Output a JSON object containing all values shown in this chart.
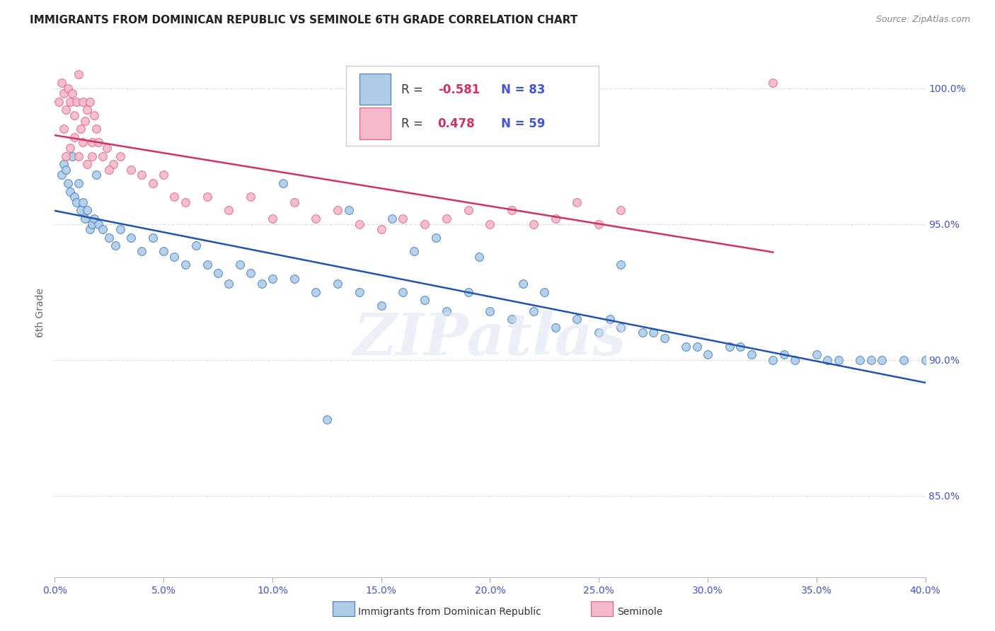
{
  "title": "IMMIGRANTS FROM DOMINICAN REPUBLIC VS SEMINOLE 6TH GRADE CORRELATION CHART",
  "source": "Source: ZipAtlas.com",
  "ylabel": "6th Grade",
  "xmin": 0.0,
  "xmax": 40.0,
  "ymin": 82.0,
  "ymax": 101.5,
  "yticks": [
    85.0,
    90.0,
    95.0,
    100.0
  ],
  "ytick_labels": [
    "85.0%",
    "90.0%",
    "95.0%",
    "100.0%"
  ],
  "legend_label1": "Immigrants from Dominican Republic",
  "legend_label2": "Seminole",
  "R1": "-0.581",
  "N1": "83",
  "R2": "0.478",
  "N2": "59",
  "blue_color": "#aecce8",
  "blue_edge_color": "#4478b8",
  "blue_line_color": "#2255aa",
  "pink_color": "#f5b8c8",
  "pink_edge_color": "#e06080",
  "pink_line_color": "#cc3366",
  "watermark": "ZIPatlas",
  "axis_label_color": "#4455cc",
  "title_color": "#222222",
  "grid_color": "#dddddd",
  "blue_scatter_x": [
    0.3,
    0.4,
    0.5,
    0.6,
    0.7,
    0.8,
    0.9,
    1.0,
    1.1,
    1.2,
    1.3,
    1.4,
    1.5,
    1.6,
    1.7,
    1.8,
    1.9,
    2.0,
    2.2,
    2.5,
    2.8,
    3.0,
    3.5,
    4.0,
    4.5,
    5.0,
    5.5,
    6.0,
    6.5,
    7.0,
    7.5,
    8.0,
    8.5,
    9.0,
    9.5,
    10.0,
    11.0,
    12.0,
    13.0,
    14.0,
    15.0,
    16.0,
    17.0,
    18.0,
    19.0,
    20.0,
    21.0,
    22.0,
    23.0,
    24.0,
    25.0,
    26.0,
    27.0,
    28.0,
    29.0,
    30.0,
    31.0,
    32.0,
    33.0,
    34.0,
    35.0,
    36.0,
    37.0,
    38.0,
    39.0,
    40.0,
    10.5,
    13.5,
    15.5,
    17.5,
    19.5,
    22.5,
    25.5,
    27.5,
    29.5,
    31.5,
    33.5,
    35.5,
    37.5,
    26.0,
    21.5,
    16.5,
    12.5
  ],
  "blue_scatter_y": [
    96.8,
    97.2,
    97.0,
    96.5,
    96.2,
    97.5,
    96.0,
    95.8,
    96.5,
    95.5,
    95.8,
    95.2,
    95.5,
    94.8,
    95.0,
    95.2,
    96.8,
    95.0,
    94.8,
    94.5,
    94.2,
    94.8,
    94.5,
    94.0,
    94.5,
    94.0,
    93.8,
    93.5,
    94.2,
    93.5,
    93.2,
    92.8,
    93.5,
    93.2,
    92.8,
    93.0,
    93.0,
    92.5,
    92.8,
    92.5,
    92.0,
    92.5,
    92.2,
    91.8,
    92.5,
    91.8,
    91.5,
    91.8,
    91.2,
    91.5,
    91.0,
    91.2,
    91.0,
    90.8,
    90.5,
    90.2,
    90.5,
    90.2,
    90.0,
    90.0,
    90.2,
    90.0,
    90.0,
    90.0,
    90.0,
    90.0,
    96.5,
    95.5,
    95.2,
    94.5,
    93.8,
    92.5,
    91.5,
    91.0,
    90.5,
    90.5,
    90.2,
    90.0,
    90.0,
    93.5,
    92.8,
    94.0,
    87.8
  ],
  "pink_scatter_x": [
    0.2,
    0.3,
    0.4,
    0.5,
    0.6,
    0.7,
    0.8,
    0.9,
    1.0,
    1.1,
    1.2,
    1.3,
    1.4,
    1.5,
    1.6,
    1.7,
    1.8,
    1.9,
    2.0,
    2.2,
    2.4,
    2.7,
    3.0,
    3.5,
    4.0,
    4.5,
    5.0,
    5.5,
    6.0,
    7.0,
    8.0,
    9.0,
    10.0,
    11.0,
    12.0,
    13.0,
    14.0,
    15.0,
    16.0,
    17.0,
    18.0,
    19.0,
    20.0,
    21.0,
    22.0,
    23.0,
    24.0,
    25.0,
    26.0,
    0.4,
    0.5,
    0.7,
    0.9,
    1.1,
    1.3,
    1.5,
    1.7,
    2.5,
    33.0
  ],
  "pink_scatter_y": [
    99.5,
    100.2,
    99.8,
    99.2,
    100.0,
    99.5,
    99.8,
    99.0,
    99.5,
    100.5,
    98.5,
    99.5,
    98.8,
    99.2,
    99.5,
    98.0,
    99.0,
    98.5,
    98.0,
    97.5,
    97.8,
    97.2,
    97.5,
    97.0,
    96.8,
    96.5,
    96.8,
    96.0,
    95.8,
    96.0,
    95.5,
    96.0,
    95.2,
    95.8,
    95.2,
    95.5,
    95.0,
    94.8,
    95.2,
    95.0,
    95.2,
    95.5,
    95.0,
    95.5,
    95.0,
    95.2,
    95.8,
    95.0,
    95.5,
    98.5,
    97.5,
    97.8,
    98.2,
    97.5,
    98.0,
    97.2,
    97.5,
    97.0,
    100.2
  ]
}
